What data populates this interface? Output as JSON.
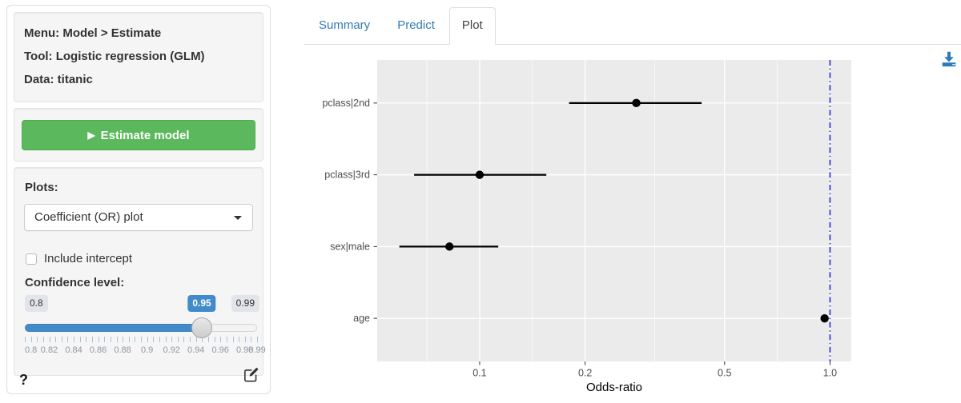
{
  "sidebar": {
    "info_lines": [
      "Menu: Model > Estimate",
      "Tool: Logistic regression (GLM)",
      "Data: titanic"
    ],
    "estimate_button_label": "Estimate model",
    "plots_label": "Plots:",
    "plot_type_selected": "Coefficient (OR) plot",
    "include_intercept_label": "Include intercept",
    "include_intercept_checked": false,
    "confidence_label": "Confidence level:",
    "slider": {
      "min": 0.8,
      "max": 0.99,
      "value": 0.95,
      "step": 0.005,
      "min_badge": "0.8",
      "value_badge": "0.95",
      "max_badge": "0.99",
      "tick_labels": [
        "0.8",
        "0.82",
        "0.84",
        "0.86",
        "0.88",
        "0.9",
        "0.92",
        "0.94",
        "0.96",
        "0.98",
        "0.99"
      ],
      "accent_color": "#428bca"
    },
    "help_label": "?"
  },
  "main": {
    "tabs": [
      {
        "label": "Summary",
        "active": false
      },
      {
        "label": "Predict",
        "active": false
      },
      {
        "label": "Plot",
        "active": true
      }
    ]
  },
  "icons": {
    "play": "▶",
    "caret_down": "caret-down-icon",
    "help": "question-mark-icon",
    "download": "download-tray-arrow-icon",
    "edit": "pencil-square-icon",
    "download_color": "#2d7ab9"
  },
  "chart_data": {
    "type": "scatter",
    "title": "",
    "xlabel": "Odds-ratio",
    "ylabel": "",
    "x_scale": "log10",
    "xlim": [
      0.051,
      1.15
    ],
    "x_ticks": [
      0.1,
      0.2,
      0.5,
      1.0
    ],
    "x_tick_labels": [
      "0.1",
      "0.2",
      "0.5",
      "1.0"
    ],
    "x_minor_gridlines": [
      0.0707,
      0.1414,
      0.3162,
      0.7071
    ],
    "categories": [
      "pclass|2nd",
      "pclass|3rd",
      "sex|male",
      "age"
    ],
    "series": [
      {
        "label": "pclass|2nd",
        "odds_ratio": 0.28,
        "ci_low": 0.18,
        "ci_high": 0.43
      },
      {
        "label": "pclass|3rd",
        "odds_ratio": 0.1,
        "ci_low": 0.065,
        "ci_high": 0.155
      },
      {
        "label": "sex|male",
        "odds_ratio": 0.082,
        "ci_low": 0.059,
        "ci_high": 0.113
      },
      {
        "label": "age",
        "odds_ratio": 0.965,
        "ci_low": 0.952,
        "ci_high": 0.979
      }
    ],
    "reference_line": {
      "x": 1.0,
      "color": "#3436cf",
      "linetype": "dotdash"
    },
    "point_color": "#000000",
    "error_bar_color": "#000000",
    "panel_bg": "#ebebeb",
    "grid_color": "#ffffff",
    "grid": "on",
    "legend": "none"
  }
}
